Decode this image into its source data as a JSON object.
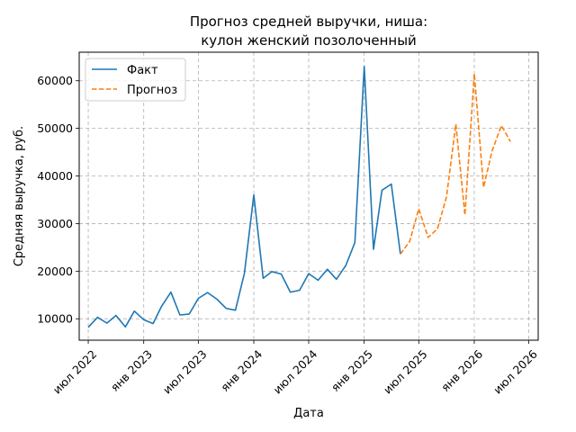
{
  "chart_data": {
    "type": "line",
    "title_lines": [
      "Прогноз средней выручки, ниша:",
      "кулон женский позолоченный"
    ],
    "xlabel": "Дата",
    "ylabel": "Средняя выручка, руб.",
    "xlim": [
      "2022-06-01",
      "2026-08-01"
    ],
    "ylim": [
      5500,
      66000
    ],
    "grid": true,
    "legend_position": "top-left",
    "x_ticks": [
      {
        "x": "2022-07-01",
        "label": "июл 2022"
      },
      {
        "x": "2023-01-01",
        "label": "янв 2023"
      },
      {
        "x": "2023-07-01",
        "label": "июл 2023"
      },
      {
        "x": "2024-01-01",
        "label": "янв 2024"
      },
      {
        "x": "2024-07-01",
        "label": "июл 2024"
      },
      {
        "x": "2025-01-01",
        "label": "янв 2025"
      },
      {
        "x": "2025-07-01",
        "label": "июл 2025"
      },
      {
        "x": "2026-01-01",
        "label": "янв 2026"
      },
      {
        "x": "2026-07-01",
        "label": "июл 2026"
      }
    ],
    "y_ticks": [
      {
        "y": 10000,
        "label": "10000"
      },
      {
        "y": 20000,
        "label": "20000"
      },
      {
        "y": 30000,
        "label": "30000"
      },
      {
        "y": 40000,
        "label": "40000"
      },
      {
        "y": 50000,
        "label": "50000"
      },
      {
        "y": 60000,
        "label": "60000"
      }
    ],
    "series": [
      {
        "name": "Факт",
        "color": "#1f77b4",
        "dash": "solid",
        "points": [
          [
            "2022-07-01",
            8200
          ],
          [
            "2022-08-01",
            10300
          ],
          [
            "2022-09-01",
            9100
          ],
          [
            "2022-10-01",
            10700
          ],
          [
            "2022-11-01",
            8300
          ],
          [
            "2022-12-01",
            11600
          ],
          [
            "2023-01-01",
            9800
          ],
          [
            "2023-02-01",
            9000
          ],
          [
            "2023-03-01",
            12600
          ],
          [
            "2023-04-01",
            15600
          ],
          [
            "2023-05-01",
            10800
          ],
          [
            "2023-06-01",
            11000
          ],
          [
            "2023-07-01",
            14300
          ],
          [
            "2023-08-01",
            15500
          ],
          [
            "2023-09-01",
            14100
          ],
          [
            "2023-10-01",
            12200
          ],
          [
            "2023-11-01",
            11800
          ],
          [
            "2023-12-01",
            19600
          ],
          [
            "2024-01-01",
            36000
          ],
          [
            "2024-02-01",
            18500
          ],
          [
            "2024-03-01",
            19900
          ],
          [
            "2024-04-01",
            19400
          ],
          [
            "2024-05-01",
            15600
          ],
          [
            "2024-06-01",
            16000
          ],
          [
            "2024-07-01",
            19500
          ],
          [
            "2024-08-01",
            18100
          ],
          [
            "2024-09-01",
            20400
          ],
          [
            "2024-10-01",
            18300
          ],
          [
            "2024-11-01",
            21200
          ],
          [
            "2024-12-01",
            26000
          ],
          [
            "2025-01-01",
            63000
          ],
          [
            "2025-02-01",
            24600
          ],
          [
            "2025-03-01",
            37000
          ],
          [
            "2025-04-01",
            38300
          ],
          [
            "2025-05-01",
            23600
          ]
        ]
      },
      {
        "name": "Прогноз",
        "color": "#ff7f0e",
        "dash": "dashed",
        "points": [
          [
            "2025-05-01",
            23600
          ],
          [
            "2025-06-01",
            26300
          ],
          [
            "2025-07-01",
            33100
          ],
          [
            "2025-08-01",
            27100
          ],
          [
            "2025-09-01",
            28900
          ],
          [
            "2025-10-01",
            35600
          ],
          [
            "2025-11-01",
            50900
          ],
          [
            "2025-12-01",
            31800
          ],
          [
            "2026-01-01",
            61500
          ],
          [
            "2026-02-01",
            37600
          ],
          [
            "2026-03-01",
            45200
          ],
          [
            "2026-04-01",
            50600
          ],
          [
            "2026-05-01",
            47200
          ]
        ]
      }
    ]
  }
}
